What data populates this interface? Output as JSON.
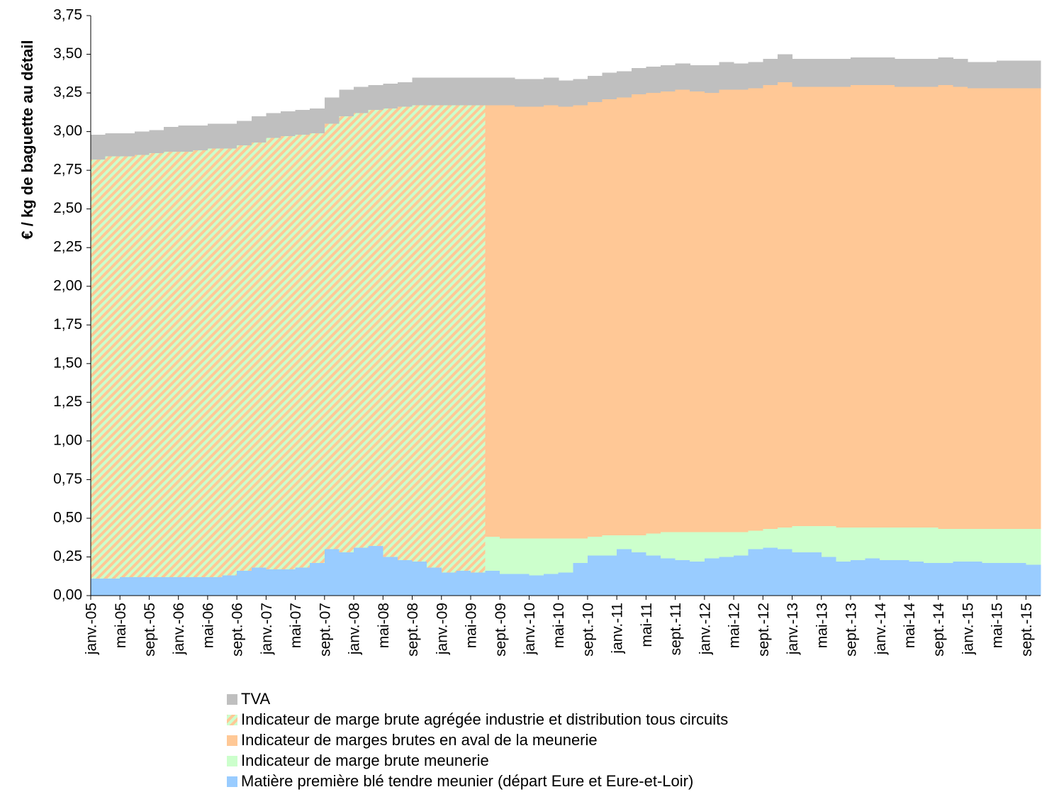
{
  "chart_data": {
    "type": "stacked_area",
    "ylabel": "€ / kg de baguette au détail",
    "categories": [
      "janv.-05",
      null,
      "mai-05",
      null,
      "sept.-05",
      null,
      "janv.-06",
      null,
      "mai-06",
      null,
      "sept.-06",
      null,
      "janv.-07",
      null,
      "mai-07",
      null,
      "sept.-07",
      null,
      "janv.-08",
      null,
      "mai-08",
      null,
      "sept.-08",
      null,
      "janv.-09",
      null,
      "mai-09",
      null,
      "sept.-09",
      null,
      "janv.-10",
      null,
      "mai-10",
      null,
      "sept.-10",
      null,
      "janv.-11",
      null,
      "mai-11",
      null,
      "sept.-11",
      null,
      "janv.-12",
      null,
      "mai-12",
      null,
      "sept.-12",
      null,
      "janv.-13",
      null,
      "mai-13",
      null,
      "sept.-13",
      null,
      "janv.-14",
      null,
      "mai-14",
      null,
      "sept.-14",
      null,
      "janv.-15",
      null,
      "mai-15",
      null,
      "sept.-15"
    ],
    "series": [
      {
        "name": "TVA",
        "color": "#bfbfbf",
        "values": [
          0.16,
          0.15,
          0.15,
          0.15,
          0.15,
          0.16,
          0.17,
          0.16,
          0.16,
          0.16,
          0.16,
          0.17,
          0.16,
          0.16,
          0.16,
          0.16,
          0.17,
          0.17,
          0.17,
          0.16,
          0.16,
          0.16,
          0.18,
          0.18,
          0.18,
          0.18,
          0.18,
          0.18,
          0.18,
          0.18,
          0.18,
          0.18,
          0.17,
          0.17,
          0.17,
          0.17,
          0.17,
          0.17,
          0.17,
          0.17,
          0.17,
          0.17,
          0.18,
          0.18,
          0.17,
          0.17,
          0.17,
          0.18,
          0.18,
          0.18,
          0.18,
          0.18,
          0.18,
          0.18,
          0.18,
          0.18,
          0.18,
          0.18,
          0.18,
          0.18,
          0.17,
          0.17,
          0.18,
          0.18,
          0.18
        ]
      },
      {
        "name": "Indicateur de marge brute agrégée industrie et distribution tous circuits",
        "color": "#ffc896",
        "hatch_color": "#ccffcc",
        "values": [
          2.71,
          2.73,
          2.72,
          2.73,
          2.74,
          2.75,
          2.75,
          2.76,
          2.77,
          2.76,
          2.75,
          2.75,
          2.79,
          2.8,
          2.8,
          2.78,
          2.75,
          2.82,
          2.81,
          2.82,
          2.9,
          2.93,
          2.95,
          2.99,
          3.02,
          3.01,
          3.02,
          null,
          null,
          null,
          null,
          null,
          null,
          null,
          null,
          null,
          null,
          null,
          null,
          null,
          null,
          null,
          null,
          null,
          null,
          null,
          null,
          null,
          null,
          null,
          null,
          null,
          null,
          null,
          null,
          null,
          null,
          null,
          null,
          null,
          null,
          null,
          null,
          null,
          null
        ]
      },
      {
        "name": "Indicateur de marges brutes en aval de la meunerie",
        "color": "#ffc896",
        "values": [
          null,
          null,
          null,
          null,
          null,
          null,
          null,
          null,
          null,
          null,
          null,
          null,
          null,
          null,
          null,
          null,
          null,
          null,
          null,
          null,
          null,
          null,
          null,
          null,
          null,
          null,
          null,
          2.79,
          2.8,
          2.79,
          2.79,
          2.8,
          2.79,
          2.8,
          2.81,
          2.82,
          2.83,
          2.85,
          2.85,
          2.85,
          2.86,
          2.85,
          2.84,
          2.86,
          2.86,
          2.86,
          2.87,
          2.88,
          2.84,
          2.84,
          2.84,
          2.85,
          2.86,
          2.86,
          2.86,
          2.85,
          2.85,
          2.85,
          2.87,
          2.86,
          2.85,
          2.85,
          2.85,
          2.85,
          2.85
        ]
      },
      {
        "name": "Indicateur de marge brute meunerie",
        "color": "#ccffcc",
        "values": [
          null,
          null,
          null,
          null,
          null,
          null,
          null,
          null,
          null,
          null,
          null,
          null,
          null,
          null,
          null,
          null,
          null,
          null,
          null,
          null,
          null,
          null,
          null,
          null,
          null,
          null,
          null,
          0.22,
          0.23,
          0.23,
          0.24,
          0.23,
          0.22,
          0.16,
          0.12,
          0.13,
          0.09,
          0.11,
          0.14,
          0.17,
          0.18,
          0.19,
          0.17,
          0.16,
          0.15,
          0.12,
          0.12,
          0.14,
          0.17,
          0.17,
          0.2,
          0.22,
          0.21,
          0.2,
          0.21,
          0.21,
          0.22,
          0.23,
          0.22,
          0.21,
          0.21,
          0.22,
          0.22,
          0.22,
          0.23
        ]
      },
      {
        "name": "Matière première blé tendre meunier (départ Eure et Eure-et-Loir)",
        "color": "#99ccff",
        "values": [
          0.11,
          0.11,
          0.12,
          0.12,
          0.12,
          0.12,
          0.12,
          0.12,
          0.12,
          0.13,
          0.16,
          0.18,
          0.17,
          0.17,
          0.18,
          0.21,
          0.3,
          0.28,
          0.31,
          0.32,
          0.25,
          0.23,
          0.22,
          0.18,
          0.15,
          0.16,
          0.15,
          0.16,
          0.14,
          0.14,
          0.13,
          0.14,
          0.15,
          0.21,
          0.26,
          0.26,
          0.3,
          0.28,
          0.26,
          0.24,
          0.23,
          0.22,
          0.24,
          0.25,
          0.26,
          0.3,
          0.31,
          0.3,
          0.28,
          0.28,
          0.25,
          0.22,
          0.23,
          0.24,
          0.23,
          0.23,
          0.22,
          0.21,
          0.21,
          0.22,
          0.22,
          0.21,
          0.21,
          0.21,
          0.2
        ]
      }
    ],
    "ylim": [
      0,
      3.75
    ],
    "yticks": [
      {
        "value": 0,
        "label": "0,00"
      },
      {
        "value": 0.25,
        "label": "0,25"
      },
      {
        "value": 0.5,
        "label": "0,50"
      },
      {
        "value": 0.75,
        "label": "0,75"
      },
      {
        "value": 1,
        "label": "1,00"
      },
      {
        "value": 1.25,
        "label": "1,25"
      },
      {
        "value": 1.5,
        "label": "1,50"
      },
      {
        "value": 1.75,
        "label": "1,75"
      },
      {
        "value": 2,
        "label": "2,00"
      },
      {
        "value": 2.25,
        "label": "2,25"
      },
      {
        "value": 2.5,
        "label": "2,50"
      },
      {
        "value": 2.75,
        "label": "2,75"
      },
      {
        "value": 3,
        "label": "3,00"
      },
      {
        "value": 3.25,
        "label": "3,25"
      },
      {
        "value": 3.5,
        "label": "3,50"
      },
      {
        "value": 3.75,
        "label": "3,75"
      }
    ],
    "grid": false,
    "legend": "bottom"
  }
}
